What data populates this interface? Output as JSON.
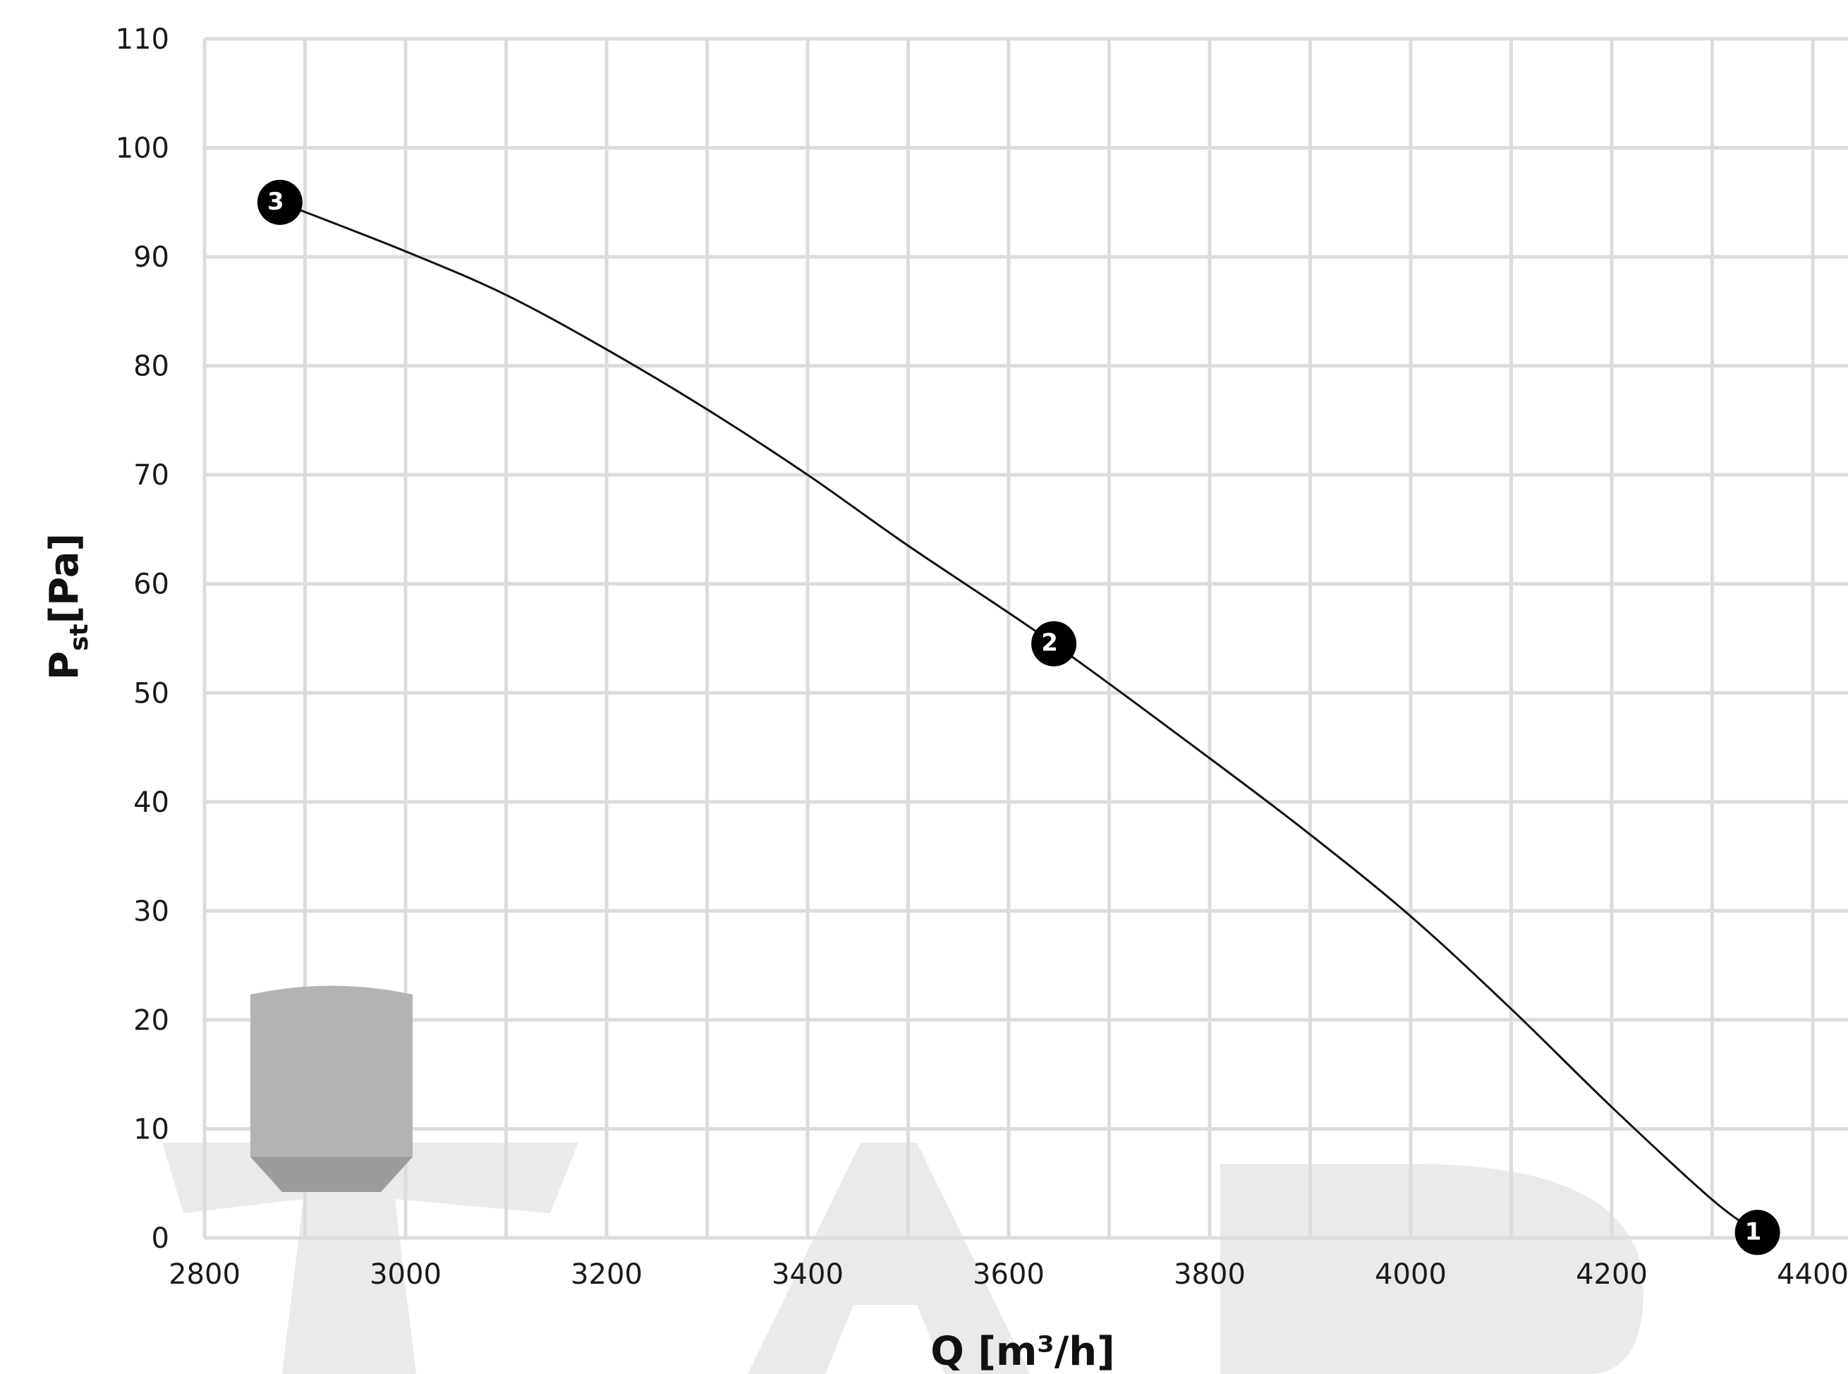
{
  "chart_data": {
    "type": "line",
    "title": "",
    "xlabel": "Q  [m³/h]",
    "ylabel": {
      "main": "P",
      "sub": "st",
      "unit": "[Pa]"
    },
    "xlim": [
      2800,
      4400
    ],
    "ylim": [
      0,
      110
    ],
    "x_ticks": [
      2800,
      3000,
      3200,
      3400,
      3600,
      3800,
      4000,
      4200,
      4400
    ],
    "y_ticks": [
      0,
      10,
      20,
      30,
      40,
      50,
      60,
      70,
      80,
      90,
      100,
      110
    ],
    "x_minor_step": 100,
    "grid": true,
    "legend": "none",
    "curve": [
      {
        "x": 2875,
        "y": 95
      },
      {
        "x": 3000,
        "y": 90.5
      },
      {
        "x": 3100,
        "y": 86.5
      },
      {
        "x": 3200,
        "y": 81.5
      },
      {
        "x": 3300,
        "y": 76
      },
      {
        "x": 3400,
        "y": 70
      },
      {
        "x": 3500,
        "y": 63.5
      },
      {
        "x": 3645,
        "y": 54.5
      },
      {
        "x": 3800,
        "y": 44
      },
      {
        "x": 3900,
        "y": 37
      },
      {
        "x": 4000,
        "y": 29.5
      },
      {
        "x": 4100,
        "y": 21
      },
      {
        "x": 4200,
        "y": 12
      },
      {
        "x": 4300,
        "y": 3.5
      },
      {
        "x": 4345,
        "y": 0.5
      }
    ],
    "points": [
      {
        "label": "1",
        "x": 4345,
        "y": 0.5
      },
      {
        "label": "2",
        "x": 3645,
        "y": 54.5
      },
      {
        "label": "3",
        "x": 2875,
        "y": 95
      }
    ],
    "colors": {
      "curve": "#111111",
      "marker": "#000000",
      "grid": "#dcdcdc",
      "watermark": "#d9d9d9",
      "icon": "#b0b0b0"
    }
  },
  "watermark": {
    "text": "TAD"
  }
}
